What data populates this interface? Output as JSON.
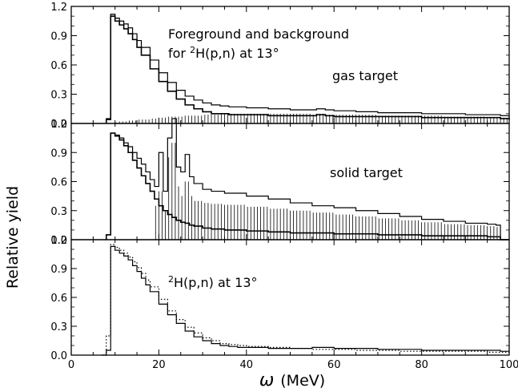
{
  "figure": {
    "ylabel": "Relative yield",
    "xlabel_symbol": "ω",
    "xlabel_unit": "(MeV)"
  },
  "chart_data": [
    {
      "type": "line",
      "panel": "top",
      "xlim": [
        0,
        100
      ],
      "ylim": [
        0,
        1.2
      ],
      "yticks": [
        "0.0",
        "0.3",
        "0.6",
        "0.9",
        "1.2"
      ],
      "annotations": {
        "line1": "Foreground and background",
        "line2_prefix": "for ",
        "line2_sup": "2",
        "line2_rest": "H(p,n) at 13°",
        "target": "gas target"
      },
      "x": [
        8,
        9,
        10,
        11,
        12,
        13,
        14,
        15,
        16,
        18,
        20,
        22,
        24,
        26,
        28,
        30,
        32,
        34,
        36,
        38,
        40,
        45,
        50,
        55,
        56,
        58,
        60,
        65,
        70,
        75,
        80,
        85,
        90,
        95,
        98,
        100
      ],
      "series": [
        {
          "style": "histogram",
          "values": [
            0.05,
            1.12,
            1.08,
            1.05,
            1.02,
            0.98,
            0.92,
            0.85,
            0.78,
            0.65,
            0.52,
            0.42,
            0.34,
            0.28,
            0.24,
            0.21,
            0.19,
            0.18,
            0.17,
            0.17,
            0.16,
            0.15,
            0.14,
            0.14,
            0.15,
            0.14,
            0.13,
            0.12,
            0.11,
            0.11,
            0.1,
            0.1,
            0.09,
            0.09,
            0.08,
            0.06
          ]
        },
        {
          "style": "histogram",
          "values": [
            0.04,
            1.1,
            1.05,
            1.01,
            0.97,
            0.92,
            0.86,
            0.78,
            0.7,
            0.56,
            0.43,
            0.33,
            0.25,
            0.19,
            0.15,
            0.12,
            0.1,
            0.1,
            0.09,
            0.09,
            0.09,
            0.08,
            0.08,
            0.08,
            0.09,
            0.08,
            0.07,
            0.07,
            0.07,
            0.07,
            0.06,
            0.06,
            0.06,
            0.06,
            0.05,
            0.04
          ]
        },
        {
          "style": "hatched",
          "values": [
            0.0,
            0.0,
            0.01,
            0.02,
            0.02,
            0.03,
            0.03,
            0.04,
            0.04,
            0.05,
            0.06,
            0.07,
            0.07,
            0.08,
            0.08,
            0.09,
            0.09,
            0.1,
            0.1,
            0.1,
            0.1,
            0.1,
            0.1,
            0.09,
            0.1,
            0.09,
            0.09,
            0.09,
            0.08,
            0.08,
            0.08,
            0.07,
            0.07,
            0.06,
            0.06,
            0.05
          ]
        }
      ]
    },
    {
      "type": "line",
      "panel": "middle",
      "xlim": [
        0,
        100
      ],
      "ylim": [
        0,
        1.2
      ],
      "yticks": [
        "0.0",
        "0.3",
        "0.6",
        "0.9",
        "1.2"
      ],
      "annotations": {
        "target": "solid target"
      },
      "x": [
        8,
        9,
        10,
        11,
        12,
        13,
        14,
        15,
        16,
        17,
        18,
        19,
        20,
        21,
        22,
        23,
        24,
        25,
        26,
        27,
        28,
        30,
        32,
        35,
        40,
        45,
        50,
        55,
        60,
        65,
        70,
        75,
        80,
        85,
        90,
        95,
        97,
        98
      ],
      "series": [
        {
          "style": "histogram",
          "values": [
            0.05,
            1.1,
            1.08,
            1.05,
            1.0,
            0.96,
            0.9,
            0.84,
            0.78,
            0.7,
            0.62,
            0.55,
            0.9,
            0.5,
            1.05,
            1.25,
            0.75,
            0.7,
            0.88,
            0.65,
            0.58,
            0.52,
            0.5,
            0.48,
            0.45,
            0.42,
            0.38,
            0.35,
            0.33,
            0.3,
            0.27,
            0.24,
            0.21,
            0.19,
            0.17,
            0.16,
            0.15,
            0.0
          ]
        },
        {
          "style": "histogram",
          "values": [
            0.05,
            1.1,
            1.07,
            1.03,
            0.97,
            0.9,
            0.82,
            0.74,
            0.66,
            0.58,
            0.5,
            0.42,
            0.35,
            0.3,
            0.26,
            0.23,
            0.2,
            0.18,
            0.17,
            0.15,
            0.14,
            0.12,
            0.11,
            0.1,
            0.09,
            0.08,
            0.07,
            0.07,
            0.06,
            0.06,
            0.05,
            0.05,
            0.04,
            0.04,
            0.04,
            0.03,
            0.03,
            0.0
          ]
        },
        {
          "style": "hatched",
          "values": [
            0.0,
            0.0,
            0.0,
            0.0,
            0.0,
            0.0,
            0.0,
            0.0,
            0.0,
            0.0,
            0.0,
            0.35,
            0.5,
            0.3,
            0.85,
            1.0,
            0.55,
            0.45,
            0.6,
            0.45,
            0.4,
            0.38,
            0.37,
            0.36,
            0.34,
            0.32,
            0.3,
            0.28,
            0.26,
            0.24,
            0.22,
            0.2,
            0.18,
            0.16,
            0.15,
            0.14,
            0.13,
            0.0
          ]
        }
      ]
    },
    {
      "type": "line",
      "panel": "bottom",
      "xlim": [
        0,
        100
      ],
      "ylim": [
        0,
        1.2
      ],
      "yticks": [
        "0.0",
        "0.3",
        "0.6",
        "0.9",
        "1.2"
      ],
      "xticks": [
        "0",
        "20",
        "40",
        "60",
        "80",
        "100"
      ],
      "annotations": {
        "label_sup": "2",
        "label_rest": "H(p,n) at 13°"
      },
      "x": [
        7,
        8,
        9,
        10,
        11,
        12,
        13,
        14,
        15,
        16,
        17,
        18,
        20,
        22,
        24,
        26,
        28,
        30,
        32,
        34,
        36,
        38,
        40,
        45,
        50,
        55,
        60,
        65,
        70,
        75,
        80,
        85,
        90,
        95,
        98
      ],
      "series": [
        {
          "style": "histogram",
          "values": [
            0.0,
            0.05,
            1.13,
            1.09,
            1.06,
            1.03,
            0.99,
            0.93,
            0.87,
            0.8,
            0.73,
            0.66,
            0.53,
            0.42,
            0.33,
            0.25,
            0.19,
            0.15,
            0.12,
            0.1,
            0.09,
            0.08,
            0.08,
            0.07,
            0.07,
            0.08,
            0.07,
            0.07,
            0.06,
            0.06,
            0.05,
            0.05,
            0.05,
            0.05,
            0.04
          ]
        },
        {
          "style": "dotted",
          "values": [
            0.0,
            0.2,
            1.15,
            1.12,
            1.09,
            1.06,
            1.02,
            0.97,
            0.91,
            0.85,
            0.78,
            0.71,
            0.58,
            0.46,
            0.37,
            0.29,
            0.23,
            0.18,
            0.15,
            0.12,
            0.11,
            0.1,
            0.09,
            0.08,
            0.07,
            0.06,
            0.06,
            0.05,
            0.05,
            0.04,
            0.04,
            0.04,
            0.04,
            0.03,
            0.03
          ]
        }
      ]
    }
  ]
}
